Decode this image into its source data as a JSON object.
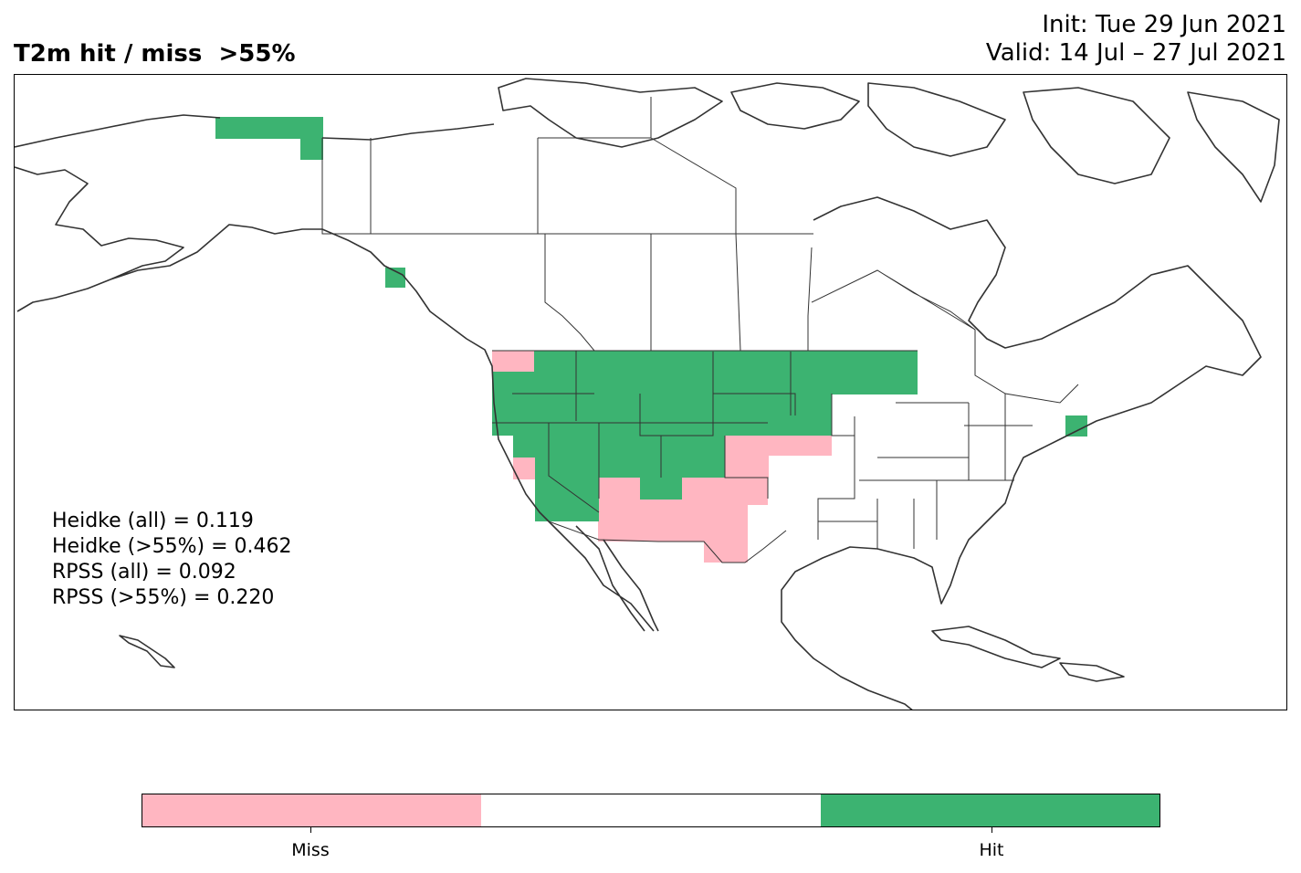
{
  "title": "T2m hit / miss  >55%",
  "init_line": "Init: Tue 29 Jun 2021",
  "valid_line": "Valid: 14 Jul – 27 Jul 2021",
  "scores": [
    "Heidke (all) = 0.119",
    "Heidke (>55%) = 0.462",
    "RPSS (all) = 0.092",
    "RPSS (>55%) = 0.220"
  ],
  "colors": {
    "miss": "#ffb6c1",
    "neutral": "#ffffff",
    "hit": "#3cb371",
    "coast": "#333333"
  },
  "colorbar": {
    "miss_label": "Miss",
    "hit_label": "Hit"
  },
  "map_region": "North America"
}
